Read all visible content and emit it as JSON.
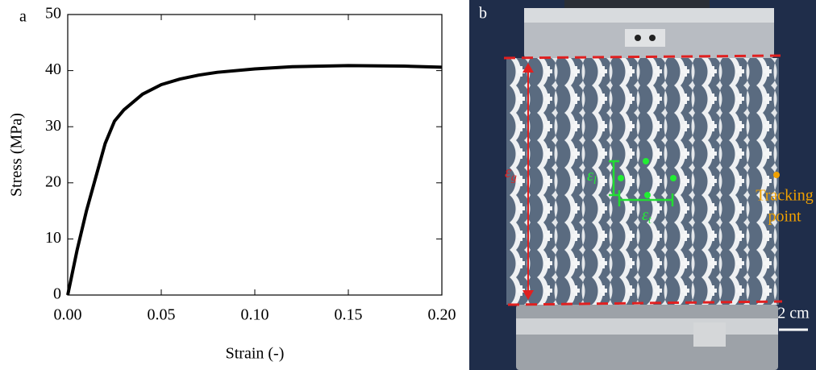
{
  "chart_data": {
    "type": "line",
    "panel": "a",
    "xlabel": "Strain (-)",
    "ylabel": "Stress (MPa)",
    "x": [
      0,
      0.005,
      0.01,
      0.015,
      0.02,
      0.025,
      0.03,
      0.04,
      0.05,
      0.06,
      0.07,
      0.08,
      0.1,
      0.12,
      0.15,
      0.18,
      0.2
    ],
    "values": [
      0,
      8,
      15,
      21,
      27,
      31,
      33,
      35.8,
      37.5,
      38.5,
      39.2,
      39.7,
      40.3,
      40.7,
      40.9,
      40.8,
      40.6
    ],
    "color": "#000000",
    "xlim": [
      0,
      0.2
    ],
    "ylim": [
      0,
      50
    ],
    "xticks": [
      {
        "value": 0,
        "label": "0.00"
      },
      0.05,
      {
        "value": 0.1,
        "label": "0.10"
      },
      0.15,
      {
        "value": 0.2,
        "label": "0.20"
      }
    ],
    "yticks": [
      0,
      10,
      20,
      30,
      40,
      50
    ]
  },
  "photo": {
    "panel": "b",
    "strain_g": {
      "symbol": "ε",
      "subscript": "g"
    },
    "strain_l": {
      "symbol": "ε",
      "subscript": "l"
    },
    "strain_t": {
      "symbol": "ε",
      "subscript": "t"
    },
    "tracking": [
      "Tracking",
      "point"
    ],
    "scale": "2 cm"
  }
}
